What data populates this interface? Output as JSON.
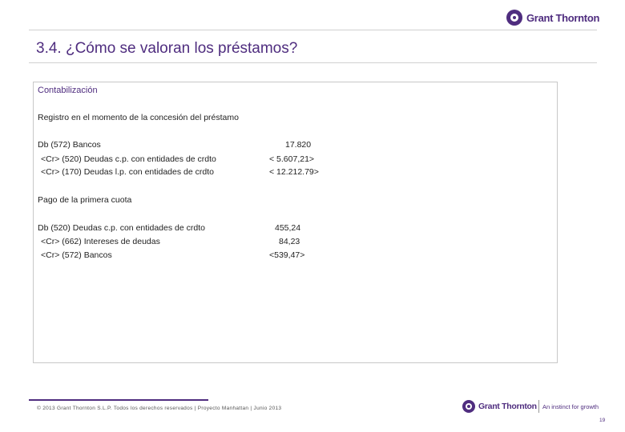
{
  "header": {
    "logo_text": "Grant Thornton",
    "title": "3.4. ¿Cómo se valoran los préstamos?"
  },
  "content": {
    "heading": "Contabilización",
    "section1": {
      "title": "Registro en el momento de la concesión del préstamo",
      "rows": [
        {
          "label": "Db (572) Bancos",
          "value": "17.820"
        },
        {
          "label": "<Cr> (520) Deudas c.p. con entidades de crdto",
          "value": "< 5.607,21>"
        },
        {
          "label": "<Cr> (170) Deudas l.p. con entidades de crdto",
          "value": "< 12.212.79>"
        }
      ]
    },
    "section2": {
      "title": "Pago de la primera cuota",
      "rows": [
        {
          "label": "Db (520) Deudas c.p. con entidades de crdto",
          "value": "455,24"
        },
        {
          "label": "<Cr> (662) Intereses de deudas",
          "value": "84,23"
        },
        {
          "label": "<Cr> (572) Bancos",
          "value": "<539,47>"
        }
      ]
    }
  },
  "footer": {
    "copyright": "© 2013 Grant Thornton S.L.P. Todos los derechos reservados | Proyecto Manhattan | Junio 2013",
    "logo_text": "Grant Thornton",
    "tagline": "An instinct for growth",
    "page_number": "19"
  }
}
